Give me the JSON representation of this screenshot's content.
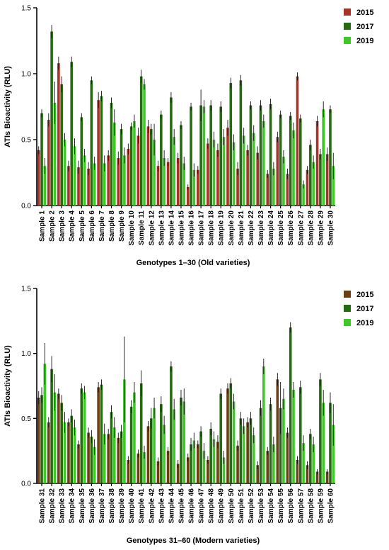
{
  "chart_data": [
    {
      "type": "bar",
      "title": "",
      "xlabel": "Genotypes 1–30 (Old varieties)",
      "ylabel": "ATIs Bioactivity (RLU)",
      "ylim": [
        0,
        1.5
      ],
      "yticks": [
        "0.0",
        "0.5",
        "1.0",
        "1.5"
      ],
      "grid": false,
      "legend_position": "top-right",
      "error_bars": true,
      "categories": [
        "Sample 1",
        "Sample 2",
        "Sample 3",
        "Sample 4",
        "Sample 5",
        "Sample 6",
        "Sample 7",
        "Sample 8",
        "Sample 9",
        "Sample 10",
        "Sample 11",
        "Sample 12",
        "Sample 13",
        "Sample 14",
        "Sample 15",
        "Sample 16",
        "Sample 17",
        "Sample 18",
        "Sample 19",
        "Sample 20",
        "Sample 21",
        "Sample 22",
        "Sample 23",
        "Sample 24",
        "Sample 25",
        "Sample 26",
        "Sample 27",
        "Sample 28",
        "Sample 29",
        "Sample 30"
      ],
      "series": [
        {
          "name": "2015",
          "color": "#a93226",
          "values": [
            0.42,
            0.65,
            1.08,
            0.3,
            0.29,
            0.28,
            0.8,
            0.38,
            0.36,
            0.43,
            0.53,
            0.6,
            0.3,
            0.33,
            0.36,
            0.14,
            0.27,
            0.47,
            0.42,
            0.59,
            0.28,
            0.42,
            0.4,
            0.24,
            0.52,
            0.24,
            0.98,
            0.27,
            0.64,
            0.39
          ],
          "errors": [
            0.03,
            0.05,
            0.05,
            0.04,
            0.05,
            0.05,
            0.06,
            0.04,
            0.05,
            0.04,
            0.06,
            0.05,
            0.04,
            0.03,
            0.04,
            0.02,
            0.03,
            0.04,
            0.05,
            0.06,
            0.05,
            0.04,
            0.05,
            0.03,
            0.04,
            0.04,
            0.03,
            0.03,
            0.04,
            0.05
          ]
        },
        {
          "name": "2017",
          "color": "#256b12",
          "values": [
            0.7,
            1.32,
            0.92,
            1.09,
            0.67,
            0.95,
            0.83,
            0.78,
            0.58,
            0.6,
            0.98,
            0.58,
            0.69,
            0.82,
            0.61,
            0.75,
            0.76,
            0.76,
            0.75,
            0.93,
            0.95,
            0.76,
            0.76,
            0.77,
            0.69,
            0.68,
            0.66,
            0.46,
            0.39,
            0.73
          ],
          "errors": [
            0.03,
            0.05,
            0.06,
            0.04,
            0.03,
            0.03,
            0.04,
            0.04,
            0.04,
            0.03,
            0.05,
            0.04,
            0.03,
            0.04,
            0.03,
            0.03,
            0.12,
            0.04,
            0.04,
            0.04,
            0.04,
            0.03,
            0.04,
            0.04,
            0.03,
            0.03,
            0.03,
            0.04,
            0.04,
            0.03
          ]
        },
        {
          "name": "2019",
          "color": "#3cc926",
          "values": [
            0.3,
            0.78,
            0.5,
            0.45,
            0.38,
            0.32,
            0.32,
            0.63,
            0.38,
            0.64,
            0.92,
            0.5,
            0.36,
            0.52,
            0.32,
            0.27,
            0.75,
            0.5,
            0.52,
            0.48,
            0.53,
            0.55,
            0.64,
            0.28,
            0.37,
            0.57,
            0.16,
            0.33,
            0.73,
            0.3
          ],
          "errors": [
            0.06,
            0.16,
            0.05,
            0.06,
            0.05,
            0.05,
            0.06,
            0.1,
            0.06,
            0.05,
            0.04,
            0.12,
            0.06,
            0.06,
            0.05,
            0.05,
            0.05,
            0.06,
            0.06,
            0.06,
            0.06,
            0.06,
            0.05,
            0.05,
            0.05,
            0.06,
            0.03,
            0.05,
            0.06,
            0.1
          ]
        }
      ],
      "legend": [
        "2015",
        "2017",
        "2019"
      ]
    },
    {
      "type": "bar",
      "title": "",
      "xlabel": "Genotypes 31–60 (Modern varieties)",
      "ylabel": "ATIs Bioactivity (RLU)",
      "ylim": [
        0,
        1.5
      ],
      "yticks": [
        "0.0",
        "0.5",
        "1.0",
        "1.5"
      ],
      "grid": false,
      "legend_position": "top-right",
      "error_bars": true,
      "categories": [
        "Sample 31",
        "Sample 32",
        "Sample 33",
        "Sample 34",
        "Sample 35",
        "Sample 36",
        "Sample 37",
        "Sample 38",
        "Sample 39",
        "Sample 40",
        "Sample 41",
        "Sample 42",
        "Sample 43",
        "Sample 44",
        "Sample 45",
        "Sample 46",
        "Sample 47",
        "Sample 48",
        "Sample 49",
        "Sample 50",
        "Sample 51",
        "Sample 52",
        "Sample 53",
        "Sample 54",
        "Sample 55",
        "Sample 56",
        "Sample 57",
        "Sample 58",
        "Sample 59",
        "Sample 60"
      ],
      "series": [
        {
          "name": "2015",
          "color": "#6b3f12",
          "values": [
            0.66,
            0.47,
            0.69,
            0.47,
            0.3,
            0.39,
            0.74,
            0.38,
            0.35,
            0.18,
            0.23,
            0.44,
            0.17,
            0.25,
            0.15,
            0.2,
            0.3,
            0.18,
            0.32,
            0.73,
            0.29,
            0.47,
            0.14,
            0.25,
            0.8,
            0.39,
            0.18,
            0.14,
            0.09,
            0.09
          ],
          "errors": [
            0.05,
            0.04,
            0.04,
            0.03,
            0.03,
            0.04,
            0.04,
            0.04,
            0.04,
            0.03,
            0.03,
            0.04,
            0.03,
            0.03,
            0.03,
            0.03,
            0.03,
            0.03,
            0.05,
            0.04,
            0.04,
            0.04,
            0.03,
            0.03,
            0.05,
            0.04,
            0.03,
            0.03,
            0.02,
            0.02
          ]
        },
        {
          "name": "2017",
          "color": "#256b12",
          "values": [
            0.68,
            0.88,
            0.62,
            0.52,
            0.73,
            0.36,
            0.76,
            0.55,
            0.4,
            0.59,
            0.77,
            0.5,
            0.61,
            0.9,
            0.66,
            0.3,
            0.4,
            0.42,
            0.69,
            0.77,
            0.5,
            0.5,
            0.58,
            0.61,
            0.58,
            1.2,
            0.74,
            0.38,
            0.8,
            0.62
          ],
          "errors": [
            0.06,
            0.1,
            0.06,
            0.05,
            0.04,
            0.05,
            0.04,
            0.05,
            0.05,
            0.05,
            0.1,
            0.08,
            0.06,
            0.04,
            0.06,
            0.05,
            0.04,
            0.05,
            0.04,
            0.04,
            0.05,
            0.05,
            0.06,
            0.05,
            0.2,
            0.04,
            0.05,
            0.04,
            0.05,
            0.08
          ]
        },
        {
          "name": "2019",
          "color": "#3cc926",
          "values": [
            0.92,
            0.7,
            0.47,
            0.43,
            0.7,
            0.28,
            0.38,
            0.43,
            0.8,
            0.7,
            0.24,
            0.58,
            0.45,
            0.57,
            0.63,
            0.33,
            0.25,
            0.34,
            0.2,
            0.63,
            0.44,
            0.37,
            0.9,
            0.3,
            0.65,
            0.72,
            0.31,
            0.3,
            0.62,
            0.45
          ],
          "errors": [
            0.16,
            0.14,
            0.08,
            0.06,
            0.05,
            0.06,
            0.08,
            0.08,
            0.33,
            0.08,
            0.05,
            0.08,
            0.07,
            0.08,
            0.1,
            0.06,
            0.06,
            0.06,
            0.05,
            0.06,
            0.06,
            0.06,
            0.06,
            0.06,
            0.08,
            0.06,
            0.06,
            0.06,
            0.1,
            0.16
          ]
        }
      ],
      "legend": [
        "2015",
        "2017",
        "2019"
      ]
    }
  ]
}
